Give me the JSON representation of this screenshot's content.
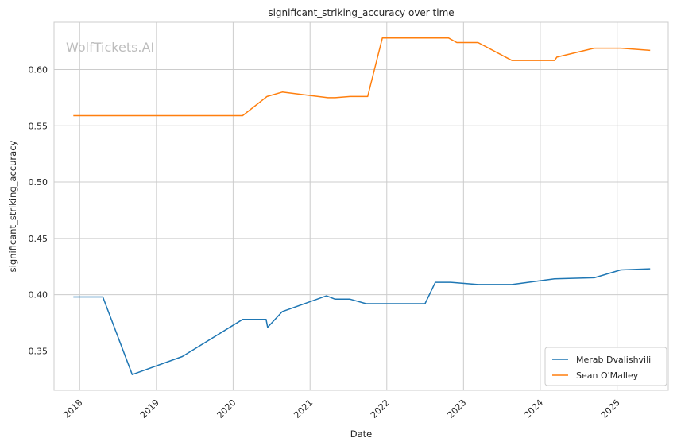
{
  "chart_data": {
    "type": "line",
    "title": "significant_striking_accuracy over time",
    "xlabel": "Date",
    "ylabel": "significant_striking_accuracy",
    "watermark": "WolfTickets.AI",
    "xlim": [
      "2017-09-01",
      "2025-09-01"
    ],
    "ylim": [
      0.315,
      0.642
    ],
    "x_ticks": [
      "2018",
      "2019",
      "2020",
      "2021",
      "2022",
      "2023",
      "2024",
      "2025"
    ],
    "y_ticks": [
      "0.35",
      "0.40",
      "0.45",
      "0.50",
      "0.55",
      "0.60"
    ],
    "grid": true,
    "legend_position": "bottom-right",
    "series": [
      {
        "name": "Merab Dvalishvili",
        "color": "#1f77b4",
        "points": [
          [
            "2017-12-02",
            0.398
          ],
          [
            "2018-04-21",
            0.398
          ],
          [
            "2018-09-08",
            0.329
          ],
          [
            "2019-05-04",
            0.345
          ],
          [
            "2020-02-15",
            0.378
          ],
          [
            "2020-06-06",
            0.378
          ],
          [
            "2020-06-13",
            0.371
          ],
          [
            "2020-08-22",
            0.385
          ],
          [
            "2021-03-20",
            0.399
          ],
          [
            "2021-04-30",
            0.396
          ],
          [
            "2021-07-10",
            0.396
          ],
          [
            "2021-09-25",
            0.392
          ],
          [
            "2022-07-02",
            0.392
          ],
          [
            "2022-08-20",
            0.411
          ],
          [
            "2022-11-01",
            0.411
          ],
          [
            "2023-03-11",
            0.409
          ],
          [
            "2023-08-19",
            0.409
          ],
          [
            "2024-03-09",
            0.414
          ],
          [
            "2024-09-14",
            0.415
          ],
          [
            "2025-01-18",
            0.422
          ],
          [
            "2025-06-07",
            0.423
          ]
        ]
      },
      {
        "name": "Sean O'Malley",
        "color": "#ff7f0e",
        "points": [
          [
            "2017-12-02",
            0.559
          ],
          [
            "2020-02-15",
            0.559
          ],
          [
            "2020-06-10",
            0.576
          ],
          [
            "2020-08-22",
            0.58
          ],
          [
            "2021-03-27",
            0.575
          ],
          [
            "2021-04-30",
            0.575
          ],
          [
            "2021-07-10",
            0.576
          ],
          [
            "2021-10-02",
            0.576
          ],
          [
            "2021-12-11",
            0.628
          ],
          [
            "2022-07-02",
            0.628
          ],
          [
            "2022-10-22",
            0.628
          ],
          [
            "2022-11-30",
            0.624
          ],
          [
            "2023-03-11",
            0.624
          ],
          [
            "2023-08-19",
            0.608
          ],
          [
            "2024-03-09",
            0.608
          ],
          [
            "2024-03-20",
            0.611
          ],
          [
            "2024-09-14",
            0.619
          ],
          [
            "2025-01-18",
            0.619
          ],
          [
            "2025-06-07",
            0.617
          ]
        ]
      }
    ]
  }
}
